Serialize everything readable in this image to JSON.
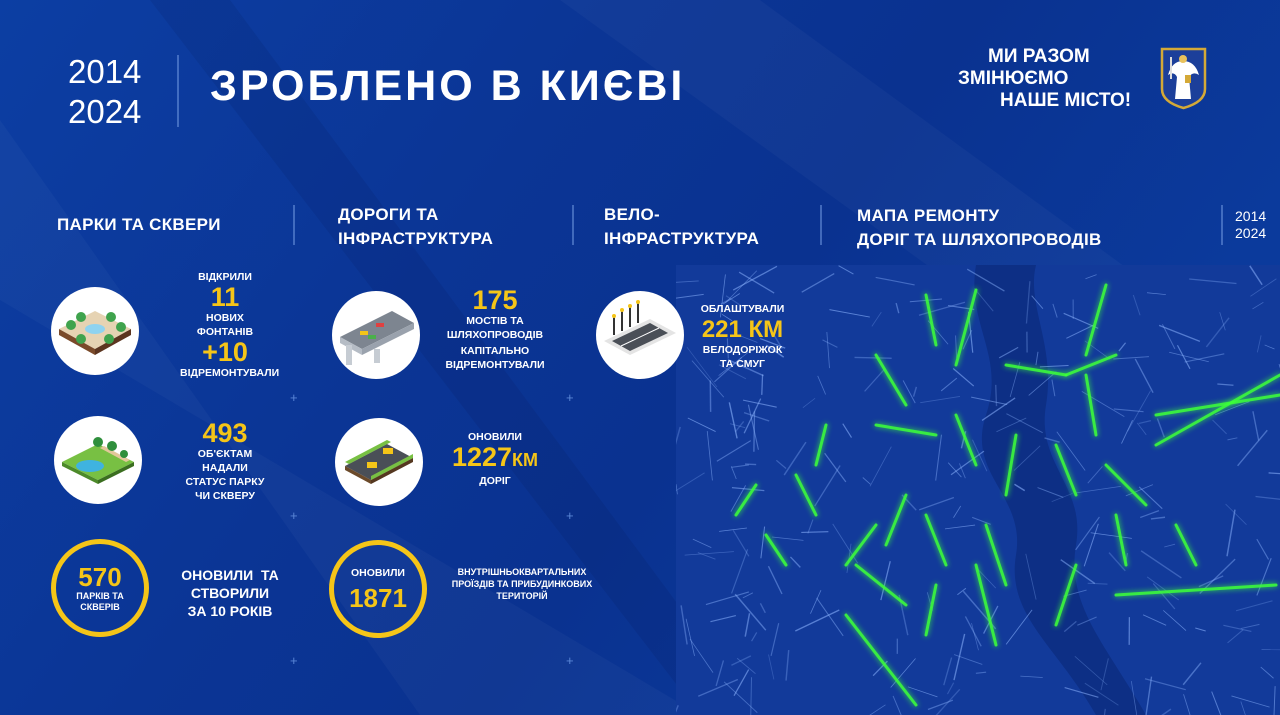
{
  "header": {
    "years": [
      "2014",
      "2024"
    ],
    "title": "ЗРОБЛЕНО В КИЄВІ",
    "slogan": [
      "МИ РАЗОМ",
      "ЗМІНЮЄМО",
      "НАШЕ МІСТО!"
    ],
    "emblem": "kyiv-coat-of-arms"
  },
  "sections": {
    "parks": {
      "title": "ПАРКИ ТА СКВЕРИ",
      "fountains": {
        "top": "ВІДКРИЛИ",
        "value": "11",
        "label": "НОВИХ ФОНТАНІВ",
        "value2": "+10",
        "label2": "ВІДРЕМОНТУВАЛИ"
      },
      "status": {
        "value": "493",
        "label": [
          "ОБ'ЄКТАМ",
          "НАДАЛИ",
          "СТАТУС ПАРКУ",
          "ЧИ СКВЕРУ"
        ]
      },
      "total": {
        "value": "570",
        "unit": "ПАРКІВ ТА СКВЕРІВ",
        "label": [
          "ОНОВИЛИ  ТА",
          "СТВОРИЛИ",
          "ЗА 10 РОКІВ"
        ]
      }
    },
    "roads": {
      "title": [
        "ДОРОГИ ТА",
        "ІНФРАСТРУКТУРА"
      ],
      "bridges": {
        "value": "175",
        "label": [
          "МОСТІВ ТА",
          "ШЛЯХОПРОВОДІВ",
          "КАПІТАЛЬНО",
          "ВІДРЕМОНТУВАЛИ"
        ]
      },
      "roads": {
        "top": "ОНОВИЛИ",
        "value": "1227",
        "unit": "КМ",
        "label": "ДОРІГ"
      },
      "yards": {
        "top": "ОНОВИЛИ",
        "value": "1871",
        "label": [
          "ВНУТРІШНЬОКВАРТАЛЬНИХ",
          "ПРОЇЗДІВ ТА ПРИБУДИНКОВИХ",
          "ТЕРИТОРІЙ"
        ]
      }
    },
    "bike": {
      "title": [
        "ВЕЛО-",
        "ІНФРАСТРУКТУРА"
      ],
      "lanes": {
        "top": "ОБЛАШТУВАЛИ",
        "value": "221 КМ",
        "label": [
          "ВЕЛОДОРІЖОК",
          "ТА СМУГ"
        ]
      }
    },
    "map": {
      "title": [
        "МАПА РЕМОНТУ",
        "ДОРІГ ТА ШЛЯХОПРОВОДІВ"
      ],
      "years": [
        "2014",
        "2024"
      ]
    }
  },
  "colors": {
    "background": "#0b3595",
    "accent": "#f5c518",
    "map_highlight": "#3dff3a"
  }
}
